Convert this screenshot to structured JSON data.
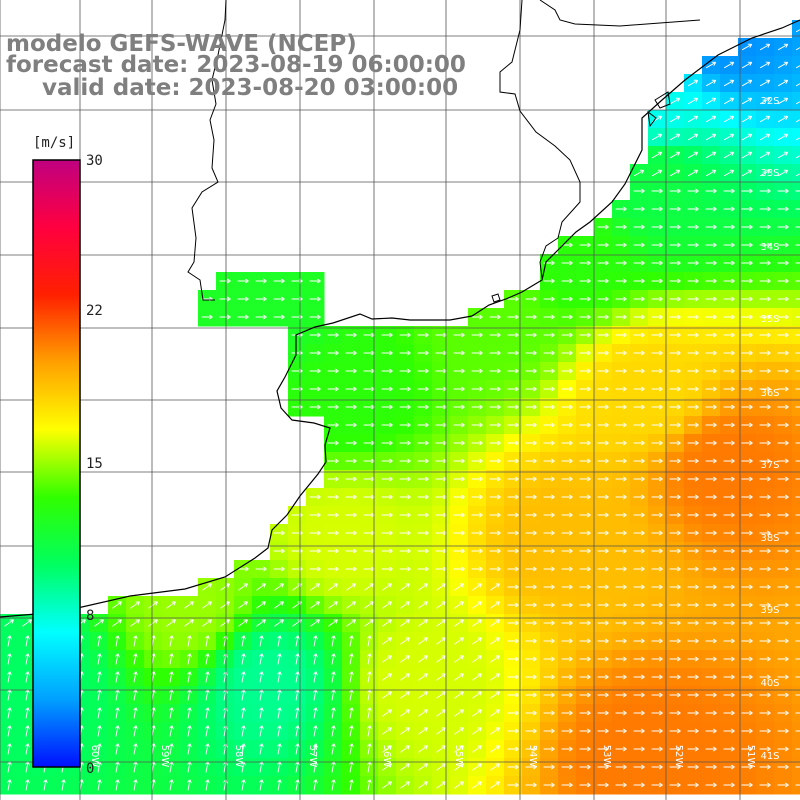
{
  "title": {
    "line1": "modelo GEFS-WAVE (NCEP)",
    "line2": "forecast date: 2023-08-19 06:00:00",
    "line3": "valid date: 2023-08-20 03:00:00"
  },
  "colorbar": {
    "unit": "[m/s]",
    "ticks": [
      "30",
      "22",
      "15",
      "8",
      "0"
    ],
    "range": [
      0,
      30
    ],
    "colors": [
      "#0010ff",
      "#00a0ff",
      "#00ffff",
      "#00ff60",
      "#30ff00",
      "#ffff00",
      "#ffa000",
      "#ff2000",
      "#ff0040",
      "#c00080"
    ]
  },
  "axes": {
    "lat_labels": [
      "32S",
      "33S",
      "34S",
      "35S",
      "36S",
      "37S",
      "38S",
      "39S",
      "40S",
      "41S"
    ],
    "lon_labels": [
      "60W",
      "59W",
      "58W",
      "57W",
      "56W",
      "55W",
      "54W",
      "53W",
      "52W",
      "51W"
    ]
  },
  "chart_data": {
    "type": "heatmap",
    "variable": "wind speed",
    "unit": "m/s",
    "lon_range": [
      -60.5,
      -50
    ],
    "lat_range": [
      -41.2,
      -30.9
    ],
    "field_description": "wind speed over ocean, low (cyan/green) near coast and south-west, high (orange/red) in the east around 37S-38S and 41S",
    "samples": [
      {
        "lon": -51,
        "lat": -31,
        "speed": 3
      },
      {
        "lon": -52,
        "lat": -32,
        "speed": 7
      },
      {
        "lon": -52,
        "lat": -33,
        "speed": 11
      },
      {
        "lon": -53,
        "lat": -34,
        "speed": 13
      },
      {
        "lon": -54,
        "lat": -35,
        "speed": 14
      },
      {
        "lon": -57,
        "lat": -35,
        "speed": 12
      },
      {
        "lon": -56,
        "lat": -36,
        "speed": 13
      },
      {
        "lon": -52,
        "lat": -36,
        "speed": 18
      },
      {
        "lon": -51,
        "lat": -37,
        "speed": 21
      },
      {
        "lon": -53,
        "lat": -38,
        "speed": 19
      },
      {
        "lon": -56,
        "lat": -38,
        "speed": 16
      },
      {
        "lon": -58,
        "lat": -39,
        "speed": 15
      },
      {
        "lon": -60,
        "lat": -40,
        "speed": 10
      },
      {
        "lon": -57,
        "lat": -40,
        "speed": 9
      },
      {
        "lon": -55,
        "lat": -40,
        "speed": 16
      },
      {
        "lon": -52,
        "lat": -41,
        "speed": 21
      }
    ],
    "wind_direction": "mostly toward the east / north-east; northward (up) in the south-west"
  }
}
